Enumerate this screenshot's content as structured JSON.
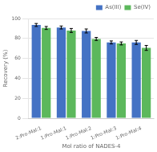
{
  "chart_data": {
    "type": "bar",
    "categories": [
      "2:Pro-Mal:1",
      "1:Pro-Mal:1",
      "1:Pro-Mal:2",
      "1:Pro-Mal:3",
      "1:Pro-Mal:4"
    ],
    "series": [
      {
        "name": "As(III)",
        "color": "#4472C4",
        "values": [
          93.5,
          91.0,
          87.5,
          76.0,
          76.0
        ],
        "errors": [
          1.5,
          1.5,
          2.0,
          1.5,
          2.0
        ]
      },
      {
        "name": "Se(IV)",
        "color": "#5cb85c",
        "values": [
          90.5,
          88.0,
          79.5,
          75.0,
          70.5
        ],
        "errors": [
          1.5,
          2.0,
          1.5,
          1.5,
          2.5
        ]
      }
    ],
    "xlabel": "Mol ratio of NADES-4",
    "ylabel": "Recovery (%)",
    "ylim": [
      0,
      100
    ],
    "yticks": [
      0,
      20,
      40,
      60,
      80,
      100
    ],
    "grid": true,
    "legend": "upper right"
  }
}
